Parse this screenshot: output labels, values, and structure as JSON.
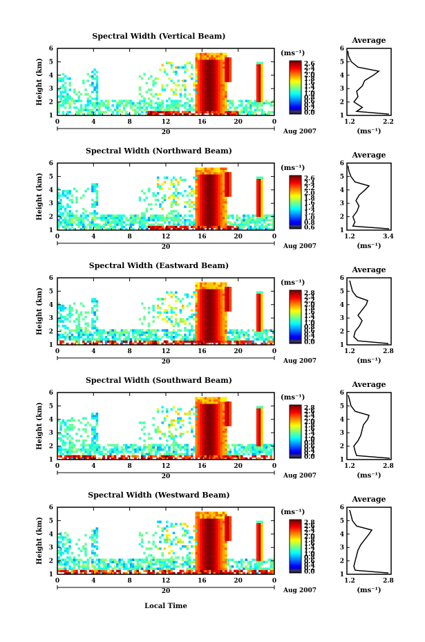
{
  "figure": {
    "xlabel": "Local Time",
    "date_label": "Aug 2007",
    "day_label": "20",
    "colorbar_unit": "(ms⁻¹)",
    "avg_title": "Average",
    "avg_unit": "(ms⁻¹)",
    "ylabel": "Height (km)"
  },
  "chart_data": [
    {
      "type": "heatmap",
      "title": "Spectral Width (Vertical Beam)",
      "ylabel": "Height (km)",
      "xlabel": "",
      "x_ticks": [
        "0",
        "4",
        "8",
        "12",
        "16",
        "20",
        "0"
      ],
      "y_ticks": [
        "1",
        "2",
        "3",
        "4",
        "5",
        "6"
      ],
      "xlim": [
        0,
        24
      ],
      "ylim": [
        1,
        6
      ],
      "colorbar": {
        "ticks": [
          "2.6",
          "2.4",
          "2.2",
          "2.0",
          "1.8",
          "1.6",
          "1.4",
          "1.2",
          "1.0",
          "0.8",
          "0.6",
          "0.4",
          "0.2",
          "0.0"
        ],
        "range": [
          0,
          2.7
        ]
      },
      "average_profile": {
        "title": "Average",
        "xlim": [
          1.2,
          2.2
        ],
        "x_ticks": [
          "1.2",
          "2.2"
        ],
        "heights": [
          1.1,
          1.3,
          1.6,
          2.0,
          2.4,
          2.8,
          3.2,
          3.6,
          4.0,
          4.3,
          4.6,
          5.0,
          5.4,
          5.8
        ],
        "values": [
          2.15,
          1.42,
          1.55,
          1.36,
          1.45,
          1.42,
          1.55,
          1.6,
          1.8,
          1.92,
          1.45,
          1.3,
          1.24,
          1.22
        ]
      }
    },
    {
      "type": "heatmap",
      "title": "Spectral Width (Northward Beam)",
      "ylabel": "Height (km)",
      "xlabel": "",
      "x_ticks": [
        "0",
        "4",
        "8",
        "12",
        "16",
        "20",
        "0"
      ],
      "y_ticks": [
        "1",
        "2",
        "3",
        "4",
        "5",
        "6"
      ],
      "xlim": [
        0,
        24
      ],
      "ylim": [
        1,
        6
      ],
      "colorbar": {
        "ticks": [
          "2.6",
          "2.4",
          "2.2",
          "2.0",
          "1.8",
          "1.6",
          "1.4",
          "1.2",
          "1.0",
          "0.8",
          "0.6"
        ],
        "range": [
          0.5,
          2.7
        ]
      },
      "average_profile": {
        "title": "Average",
        "xlim": [
          1.2,
          3.4
        ],
        "x_ticks": [
          "1.2",
          "3.4"
        ],
        "heights": [
          1.1,
          1.3,
          1.6,
          2.0,
          2.4,
          2.8,
          3.2,
          3.6,
          4.0,
          4.3,
          4.6,
          5.0,
          5.4,
          5.8
        ],
        "values": [
          3.3,
          1.5,
          1.6,
          1.5,
          1.7,
          1.8,
          1.65,
          1.8,
          2.1,
          2.3,
          1.6,
          1.4,
          1.3,
          1.25
        ]
      }
    },
    {
      "type": "heatmap",
      "title": "Spectral Width (Eastward Beam)",
      "ylabel": "Height (km)",
      "xlabel": "",
      "x_ticks": [
        "0",
        "4",
        "8",
        "12",
        "16",
        "20",
        "0"
      ],
      "y_ticks": [
        "1",
        "2",
        "3",
        "4",
        "5",
        "6"
      ],
      "xlim": [
        0,
        24
      ],
      "ylim": [
        1,
        6
      ],
      "colorbar": {
        "ticks": [
          "2.8",
          "2.4",
          "2.2",
          "2.0",
          "1.8",
          "1.6",
          "1.4",
          "1.2",
          "1.0",
          "0.8",
          "0.6",
          "0.4",
          "0.2",
          "0.0"
        ],
        "range": [
          0,
          2.9
        ]
      },
      "average_profile": {
        "title": "Average",
        "xlim": [
          1.2,
          2.8
        ],
        "x_ticks": [
          "1.2",
          "2.8"
        ],
        "heights": [
          1.1,
          1.3,
          1.6,
          2.0,
          2.4,
          2.8,
          3.2,
          3.6,
          4.0,
          4.3,
          4.6,
          5.0,
          5.4,
          5.8
        ],
        "values": [
          2.7,
          1.6,
          1.45,
          1.5,
          1.65,
          1.75,
          1.6,
          1.75,
          1.9,
          1.95,
          1.55,
          1.4,
          1.35,
          1.3
        ]
      }
    },
    {
      "type": "heatmap",
      "title": "Spectral Width (Southward Beam)",
      "ylabel": "Height (km)",
      "xlabel": "",
      "x_ticks": [
        "0",
        "4",
        "8",
        "12",
        "16",
        "20",
        "0"
      ],
      "y_ticks": [
        "1",
        "2",
        "3",
        "4",
        "5",
        "6"
      ],
      "xlim": [
        0,
        24
      ],
      "ylim": [
        1,
        6
      ],
      "colorbar": {
        "ticks": [
          "2.8",
          "2.6",
          "2.4",
          "2.2",
          "2.0",
          "1.8",
          "1.6",
          "1.4",
          "1.2",
          "1.0",
          "0.8",
          "0.6",
          "0.4",
          "0.2",
          "0.0"
        ],
        "range": [
          0,
          2.9
        ]
      },
      "average_profile": {
        "title": "Average",
        "xlim": [
          1.2,
          2.8
        ],
        "x_ticks": [
          "1.2",
          "2.8"
        ],
        "heights": [
          1.1,
          1.3,
          1.6,
          2.0,
          2.4,
          2.8,
          3.2,
          3.6,
          4.0,
          4.3,
          4.6,
          5.0,
          5.4,
          5.8
        ],
        "values": [
          2.75,
          1.55,
          1.5,
          1.45,
          1.6,
          1.7,
          1.75,
          1.8,
          1.95,
          2.0,
          1.5,
          1.35,
          1.3,
          1.25
        ]
      }
    },
    {
      "type": "heatmap",
      "title": "Spectral Width (Westward Beam)",
      "ylabel": "Height (km)",
      "xlabel": "Local Time",
      "x_ticks": [
        "0",
        "4",
        "8",
        "12",
        "16",
        "20",
        "0"
      ],
      "y_ticks": [
        "1",
        "2",
        "3",
        "4",
        "5",
        "6"
      ],
      "xlim": [
        0,
        24
      ],
      "ylim": [
        1,
        6
      ],
      "colorbar": {
        "ticks": [
          "2.8",
          "2.6",
          "2.4",
          "2.2",
          "2.0",
          "1.8",
          "1.6",
          "1.4",
          "1.2",
          "1.0",
          "0.8",
          "0.6",
          "0.4",
          "0.2",
          "0.0"
        ],
        "range": [
          0,
          2.9
        ]
      },
      "average_profile": {
        "title": "Average",
        "xlim": [
          1.2,
          2.8
        ],
        "x_ticks": [
          "1.2",
          "2.8"
        ],
        "heights": [
          1.1,
          1.3,
          1.6,
          2.0,
          2.4,
          2.8,
          3.2,
          3.6,
          4.0,
          4.3,
          4.6,
          5.0,
          5.4,
          5.8
        ],
        "values": [
          2.7,
          1.5,
          1.45,
          1.5,
          1.55,
          1.6,
          1.7,
          1.85,
          2.0,
          2.1,
          1.55,
          1.4,
          1.35,
          1.3
        ]
      }
    }
  ]
}
